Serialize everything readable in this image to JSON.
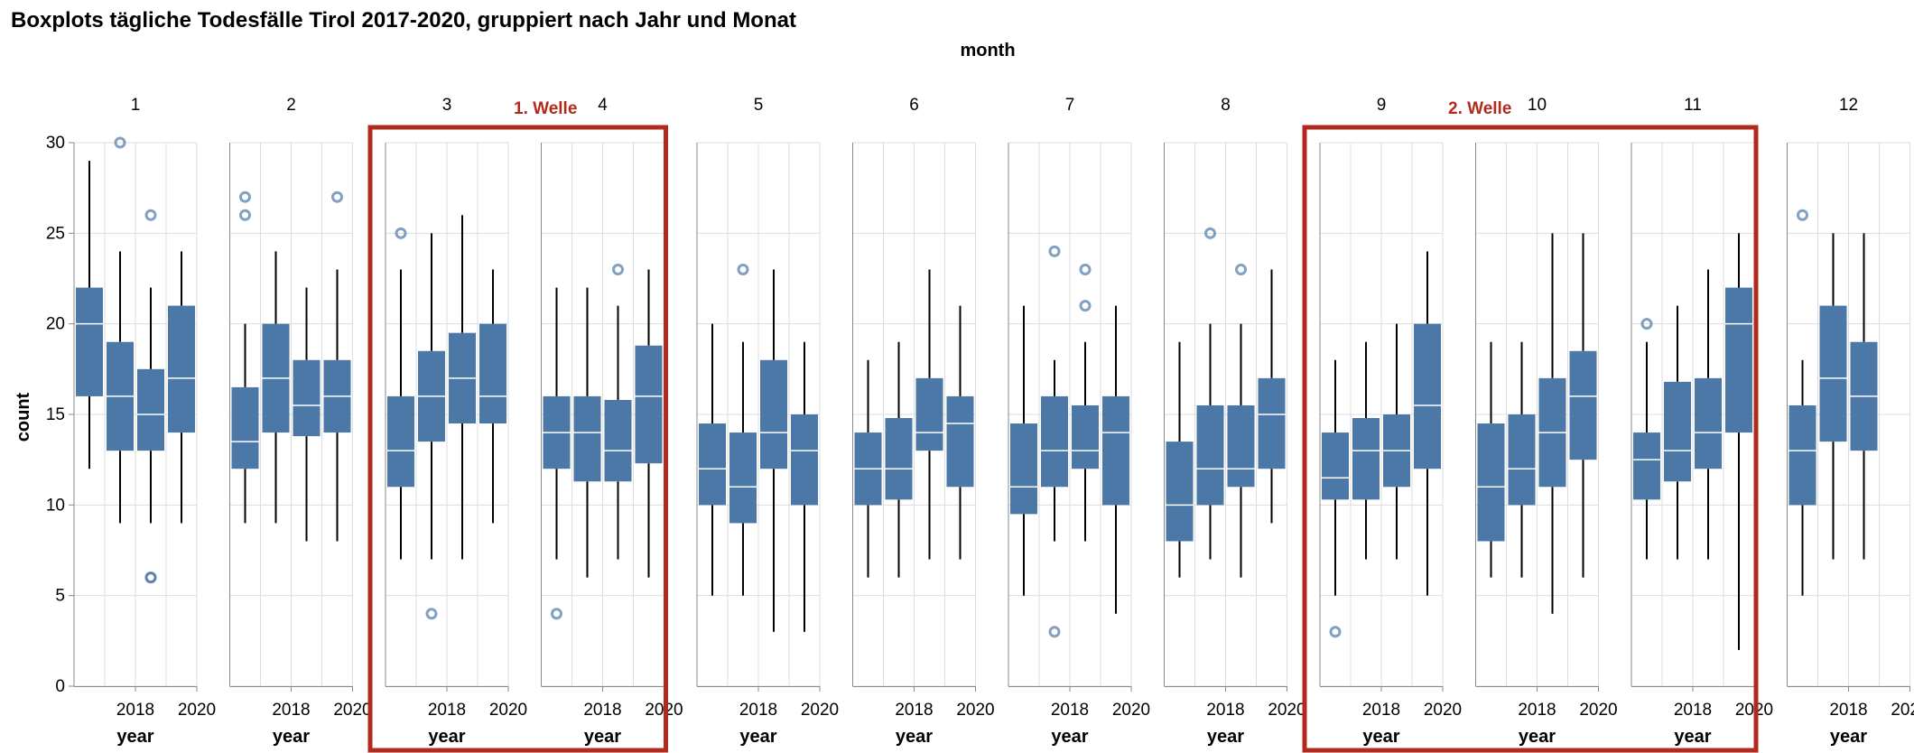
{
  "chart_data": {
    "type": "boxplot",
    "title": "Boxplots tägliche Todesfälle Tirol 2017-2020, gruppiert nach Jahr und Monat",
    "column_header": "month",
    "xlabel": "year",
    "ylabel": "count",
    "ylim": [
      0,
      30
    ],
    "yticks": [
      0,
      5,
      10,
      15,
      20,
      25,
      30
    ],
    "x_categories": [
      2017,
      2018,
      2019,
      2020
    ],
    "x_tick_labels": [
      "2018",
      "2020"
    ],
    "grid": true,
    "box_color": "#4c78a8",
    "outlier_color": "#4c78a8",
    "highlight_color": "#b22a1e",
    "highlights": [
      {
        "label": "1. Welle",
        "months": [
          "3",
          "4"
        ]
      },
      {
        "label": "2. Welle",
        "months": [
          "9",
          "10",
          "11"
        ]
      }
    ],
    "panels": [
      {
        "month": "1",
        "boxes": [
          {
            "year": 2017,
            "min": 12,
            "q1": 16,
            "median": 20,
            "q3": 22,
            "max": 29,
            "outliers": []
          },
          {
            "year": 2018,
            "min": 9,
            "q1": 13,
            "median": 16,
            "q3": 19,
            "max": 24,
            "outliers": [
              30
            ]
          },
          {
            "year": 2019,
            "min": 9,
            "q1": 13,
            "median": 15,
            "q3": 17.5,
            "max": 22,
            "outliers": [
              26,
              6,
              6
            ]
          },
          {
            "year": 2020,
            "min": 9,
            "q1": 14,
            "median": 17,
            "q3": 21,
            "max": 24,
            "outliers": []
          }
        ]
      },
      {
        "month": "2",
        "boxes": [
          {
            "year": 2017,
            "min": 9,
            "q1": 12,
            "median": 13.5,
            "q3": 16.5,
            "max": 20,
            "outliers": [
              27,
              26
            ]
          },
          {
            "year": 2018,
            "min": 9,
            "q1": 14,
            "median": 17,
            "q3": 20,
            "max": 24,
            "outliers": []
          },
          {
            "year": 2019,
            "min": 8,
            "q1": 13.8,
            "median": 15.5,
            "q3": 18,
            "max": 22,
            "outliers": []
          },
          {
            "year": 2020,
            "min": 8,
            "q1": 14,
            "median": 16,
            "q3": 18,
            "max": 23,
            "outliers": [
              27
            ]
          }
        ]
      },
      {
        "month": "3",
        "boxes": [
          {
            "year": 2017,
            "min": 7,
            "q1": 11,
            "median": 13,
            "q3": 16,
            "max": 23,
            "outliers": [
              25
            ]
          },
          {
            "year": 2018,
            "min": 7,
            "q1": 13.5,
            "median": 16,
            "q3": 18.5,
            "max": 25,
            "outliers": [
              4
            ]
          },
          {
            "year": 2019,
            "min": 7,
            "q1": 14.5,
            "median": 17,
            "q3": 19.5,
            "max": 26,
            "outliers": []
          },
          {
            "year": 2020,
            "min": 9,
            "q1": 14.5,
            "median": 16,
            "q3": 20,
            "max": 23,
            "outliers": []
          }
        ]
      },
      {
        "month": "4",
        "boxes": [
          {
            "year": 2017,
            "min": 7,
            "q1": 12,
            "median": 14,
            "q3": 16,
            "max": 22,
            "outliers": [
              4
            ]
          },
          {
            "year": 2018,
            "min": 6,
            "q1": 11.3,
            "median": 14,
            "q3": 16,
            "max": 22,
            "outliers": []
          },
          {
            "year": 2019,
            "min": 7,
            "q1": 11.3,
            "median": 13,
            "q3": 15.8,
            "max": 21,
            "outliers": [
              23
            ]
          },
          {
            "year": 2020,
            "min": 6,
            "q1": 12.3,
            "median": 16,
            "q3": 18.8,
            "max": 23,
            "outliers": []
          }
        ]
      },
      {
        "month": "5",
        "boxes": [
          {
            "year": 2017,
            "min": 5,
            "q1": 10,
            "median": 12,
            "q3": 14.5,
            "max": 20,
            "outliers": []
          },
          {
            "year": 2018,
            "min": 5,
            "q1": 9,
            "median": 11,
            "q3": 14,
            "max": 19,
            "outliers": [
              23
            ]
          },
          {
            "year": 2019,
            "min": 3,
            "q1": 12,
            "median": 14,
            "q3": 18,
            "max": 23,
            "outliers": []
          },
          {
            "year": 2020,
            "min": 3,
            "q1": 10,
            "median": 13,
            "q3": 15,
            "max": 19,
            "outliers": []
          }
        ]
      },
      {
        "month": "6",
        "boxes": [
          {
            "year": 2017,
            "min": 6,
            "q1": 10,
            "median": 12,
            "q3": 14,
            "max": 18,
            "outliers": []
          },
          {
            "year": 2018,
            "min": 6,
            "q1": 10.3,
            "median": 12,
            "q3": 14.8,
            "max": 19,
            "outliers": []
          },
          {
            "year": 2019,
            "min": 7,
            "q1": 13,
            "median": 14,
            "q3": 17,
            "max": 23,
            "outliers": []
          },
          {
            "year": 2020,
            "min": 7,
            "q1": 11,
            "median": 14.5,
            "q3": 16,
            "max": 21,
            "outliers": []
          }
        ]
      },
      {
        "month": "7",
        "boxes": [
          {
            "year": 2017,
            "min": 5,
            "q1": 9.5,
            "median": 11,
            "q3": 14.5,
            "max": 21,
            "outliers": []
          },
          {
            "year": 2018,
            "min": 8,
            "q1": 11,
            "median": 13,
            "q3": 16,
            "max": 18,
            "outliers": [
              24,
              3
            ]
          },
          {
            "year": 2019,
            "min": 8,
            "q1": 12,
            "median": 13,
            "q3": 15.5,
            "max": 19,
            "outliers": [
              23,
              21
            ]
          },
          {
            "year": 2020,
            "min": 4,
            "q1": 10,
            "median": 14,
            "q3": 16,
            "max": 21,
            "outliers": []
          }
        ]
      },
      {
        "month": "8",
        "boxes": [
          {
            "year": 2017,
            "min": 6,
            "q1": 8,
            "median": 10,
            "q3": 13.5,
            "max": 19,
            "outliers": []
          },
          {
            "year": 2018,
            "min": 7,
            "q1": 10,
            "median": 12,
            "q3": 15.5,
            "max": 20,
            "outliers": [
              25
            ]
          },
          {
            "year": 2019,
            "min": 6,
            "q1": 11,
            "median": 12,
            "q3": 15.5,
            "max": 20,
            "outliers": [
              23
            ]
          },
          {
            "year": 2020,
            "min": 9,
            "q1": 12,
            "median": 15,
            "q3": 17,
            "max": 23,
            "outliers": []
          }
        ]
      },
      {
        "month": "9",
        "boxes": [
          {
            "year": 2017,
            "min": 5,
            "q1": 10.3,
            "median": 11.5,
            "q3": 14,
            "max": 18,
            "outliers": [
              3
            ]
          },
          {
            "year": 2018,
            "min": 7,
            "q1": 10.3,
            "median": 13,
            "q3": 14.8,
            "max": 19,
            "outliers": []
          },
          {
            "year": 2019,
            "min": 7,
            "q1": 11,
            "median": 13,
            "q3": 15,
            "max": 20,
            "outliers": []
          },
          {
            "year": 2020,
            "min": 5,
            "q1": 12,
            "median": 15.5,
            "q3": 20,
            "max": 24,
            "outliers": []
          }
        ]
      },
      {
        "month": "10",
        "boxes": [
          {
            "year": 2017,
            "min": 6,
            "q1": 8,
            "median": 11,
            "q3": 14.5,
            "max": 19,
            "outliers": []
          },
          {
            "year": 2018,
            "min": 6,
            "q1": 10,
            "median": 12,
            "q3": 15,
            "max": 19,
            "outliers": []
          },
          {
            "year": 2019,
            "min": 4,
            "q1": 11,
            "median": 14,
            "q3": 17,
            "max": 25,
            "outliers": []
          },
          {
            "year": 2020,
            "min": 6,
            "q1": 12.5,
            "median": 16,
            "q3": 18.5,
            "max": 25,
            "outliers": []
          }
        ]
      },
      {
        "month": "11",
        "boxes": [
          {
            "year": 2017,
            "min": 7,
            "q1": 10.3,
            "median": 12.5,
            "q3": 14,
            "max": 19,
            "outliers": [
              20
            ]
          },
          {
            "year": 2018,
            "min": 7,
            "q1": 11.3,
            "median": 13,
            "q3": 16.8,
            "max": 21,
            "outliers": []
          },
          {
            "year": 2019,
            "min": 7,
            "q1": 12,
            "median": 14,
            "q3": 17,
            "max": 23,
            "outliers": []
          },
          {
            "year": 2020,
            "min": 2,
            "q1": 14,
            "median": 20,
            "q3": 22,
            "max": 25,
            "outliers": []
          }
        ]
      },
      {
        "month": "12",
        "boxes": [
          {
            "year": 2017,
            "min": 5,
            "q1": 10,
            "median": 13,
            "q3": 15.5,
            "max": 18,
            "outliers": [
              26
            ]
          },
          {
            "year": 2018,
            "min": 7,
            "q1": 13.5,
            "median": 17,
            "q3": 21,
            "max": 25,
            "outliers": []
          },
          {
            "year": 2019,
            "min": 7,
            "q1": 13,
            "median": 16,
            "q3": 19,
            "max": 25,
            "outliers": []
          }
        ]
      }
    ]
  }
}
